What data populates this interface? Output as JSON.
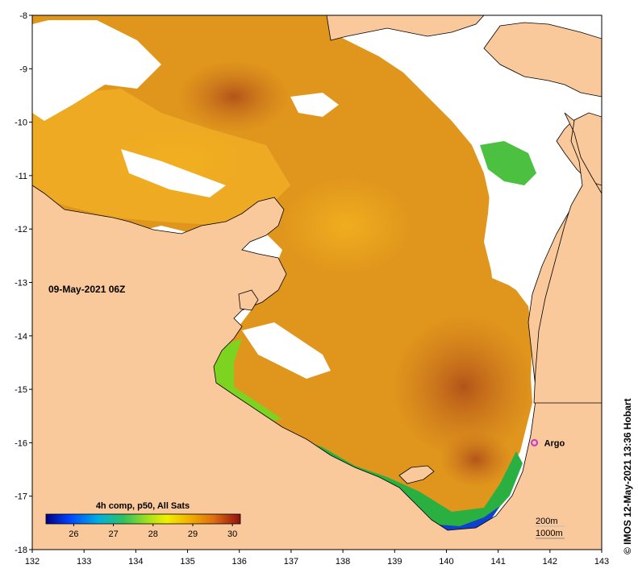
{
  "map": {
    "date_label": "09-May-2021 06Z",
    "lat_ticks": [
      "-8",
      "-9",
      "-10",
      "-11",
      "-12",
      "-13",
      "-14",
      "-15",
      "-16",
      "-17",
      "-18"
    ],
    "lon_ticks": [
      "132",
      "133",
      "134",
      "135",
      "136",
      "137",
      "138",
      "139",
      "140",
      "141",
      "142",
      "143"
    ],
    "lon_range": [
      132,
      143
    ],
    "lat_range": [
      -18,
      -8
    ]
  },
  "argo": {
    "label": "Argo",
    "lon": 141.7,
    "lat": -16.0,
    "color": "#cc33cc"
  },
  "colorbar": {
    "title": "4h comp, p50, All Sats",
    "ticks": [
      "26",
      "27",
      "28",
      "29",
      "30"
    ],
    "range": [
      25.3,
      30.2
    ],
    "tick_values": [
      26,
      27,
      28,
      29,
      30
    ]
  },
  "contours": {
    "label_200": "200m",
    "label_1000": "1000m"
  },
  "credit": "© IMOS 12-May-2021 13:36 Hobart",
  "colors": {
    "land": "#f9c89b",
    "no_data": "#ffffff",
    "sst_warm": "#e09a1c",
    "sst_hot": "#c4601a",
    "sst_cool": "#33b030"
  }
}
